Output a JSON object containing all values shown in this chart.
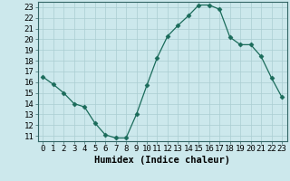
{
  "x": [
    0,
    1,
    2,
    3,
    4,
    5,
    6,
    7,
    8,
    9,
    10,
    11,
    12,
    13,
    14,
    15,
    16,
    17,
    18,
    19,
    20,
    21,
    22,
    23
  ],
  "y": [
    16.5,
    15.8,
    15.0,
    14.0,
    13.7,
    12.2,
    11.1,
    10.8,
    10.8,
    13.0,
    15.7,
    18.3,
    20.3,
    21.3,
    22.2,
    23.2,
    23.2,
    22.8,
    20.2,
    19.5,
    19.5,
    18.4,
    16.4,
    14.6
  ],
  "line_color": "#1a6b5a",
  "marker": "D",
  "marker_size": 2.5,
  "background_color": "#cce8ec",
  "grid_color": "#aacdd2",
  "xlabel": "Humidex (Indice chaleur)",
  "xlim": [
    -0.5,
    23.5
  ],
  "ylim": [
    10.5,
    23.5
  ],
  "xticks": [
    0,
    1,
    2,
    3,
    4,
    5,
    6,
    7,
    8,
    9,
    10,
    11,
    12,
    13,
    14,
    15,
    16,
    17,
    18,
    19,
    20,
    21,
    22,
    23
  ],
  "yticks": [
    11,
    12,
    13,
    14,
    15,
    16,
    17,
    18,
    19,
    20,
    21,
    22,
    23
  ],
  "tick_fontsize": 6.5,
  "xlabel_fontsize": 7.5
}
